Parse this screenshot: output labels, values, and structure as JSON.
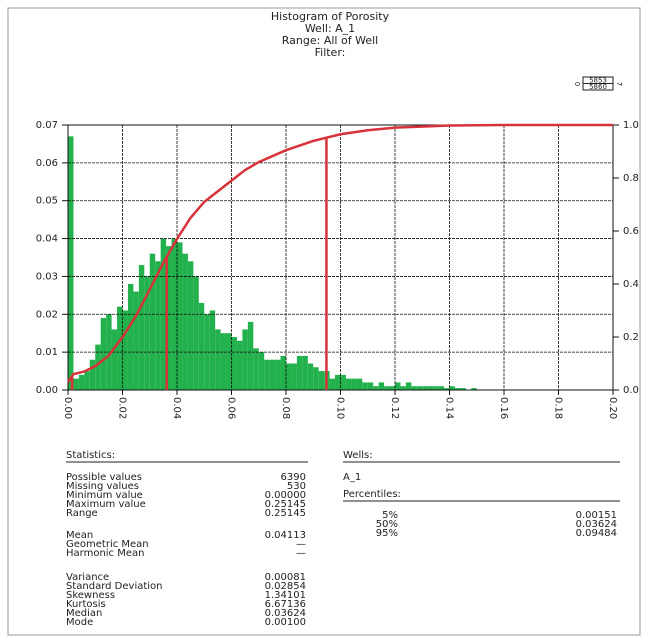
{
  "chart_data": {
    "type": "histogram",
    "title": "Histogram of Porosity",
    "subtitles": [
      "Well:  A_1",
      "Range: All of Well",
      "Filter:"
    ],
    "bins": [
      0,
      0.002,
      0.004,
      0.006,
      0.008,
      0.01,
      0.012,
      0.014,
      0.016,
      0.018,
      0.02,
      0.022,
      0.024,
      0.026,
      0.028,
      0.03,
      0.032,
      0.034,
      0.036,
      0.038,
      0.04,
      0.042,
      0.044,
      0.046,
      0.048,
      0.05,
      0.052,
      0.054,
      0.056,
      0.058,
      0.06,
      0.062,
      0.064,
      0.066,
      0.068,
      0.07,
      0.072,
      0.074,
      0.076,
      0.078,
      0.08,
      0.082,
      0.084,
      0.086,
      0.088,
      0.09,
      0.092,
      0.094,
      0.096,
      0.098,
      0.1,
      0.102,
      0.104,
      0.106,
      0.108,
      0.11,
      0.112,
      0.114,
      0.116,
      0.118,
      0.12,
      0.122,
      0.124,
      0.126,
      0.128,
      0.13,
      0.132,
      0.134,
      0.136,
      0.138,
      0.14,
      0.142,
      0.144,
      0.146,
      0.148,
      0.15
    ],
    "counts": [
      0.067,
      0.003,
      0.004,
      0.005,
      0.008,
      0.012,
      0.019,
      0.02,
      0.016,
      0.022,
      0.021,
      0.028,
      0.026,
      0.033,
      0.03,
      0.036,
      0.034,
      0.04,
      0.038,
      0.04,
      0.039,
      0.036,
      0.034,
      0.03,
      0.023,
      0.02,
      0.021,
      0.016,
      0.015,
      0.015,
      0.014,
      0.013,
      0.016,
      0.018,
      0.011,
      0.01,
      0.008,
      0.008,
      0.008,
      0.009,
      0.007,
      0.007,
      0.009,
      0.009,
      0.007,
      0.006,
      0.005,
      0.005,
      0.003,
      0.004,
      0.004,
      0.003,
      0.003,
      0.003,
      0.002,
      0.002,
      0.001,
      0.002,
      0.001,
      0.001,
      0.002,
      0.001,
      0.002,
      0.001,
      0.001,
      0.001,
      0.001,
      0.001,
      0.001,
      0.0005,
      0.001,
      0.0005,
      0.0005,
      0,
      0.0005
    ],
    "color": "#22b14c",
    "xlim": [
      0,
      0.2
    ],
    "xticks": [
      {
        "value": 0,
        "label": "0.00"
      },
      0.02,
      0.04,
      0.06,
      0.08,
      {
        "value": 0.1,
        "label": "0.10"
      },
      0.12,
      0.14,
      0.16,
      0.18,
      {
        "value": 0.2,
        "label": "0.20"
      }
    ],
    "ylim": [
      0,
      0.07
    ],
    "yticks": [
      {
        "value": 0,
        "label": "0.00"
      },
      0.01,
      0.02,
      0.03,
      0.04,
      0.05,
      0.06,
      0.07
    ],
    "y2lim": [
      0,
      1
    ],
    "y2ticks": [
      {
        "value": 0,
        "label": "0.0"
      },
      0.2,
      0.4,
      0.6,
      0.8,
      {
        "value": 1,
        "label": "1.0"
      }
    ],
    "grid": true,
    "series": [
      {
        "type": "line",
        "axis": "y2",
        "color": "#d8323a",
        "x": [
          0,
          0.002,
          0.006,
          0.01,
          0.015,
          0.02,
          0.025,
          0.03,
          0.035,
          0.04,
          0.045,
          0.05,
          0.055,
          0.06,
          0.065,
          0.07,
          0.08,
          0.09,
          0.1,
          0.11,
          0.12,
          0.14,
          0.16,
          0.2
        ],
        "values": [
          0.03,
          0.06,
          0.07,
          0.09,
          0.13,
          0.2,
          0.28,
          0.38,
          0.48,
          0.57,
          0.65,
          0.71,
          0.75,
          0.79,
          0.83,
          0.86,
          0.905,
          0.94,
          0.965,
          0.98,
          0.99,
          0.998,
          1,
          1
        ]
      }
    ]
  },
  "scale_box": {
    "left": "0",
    "top": "5853",
    "bottom": "5860",
    "right": "7"
  },
  "statistics": {
    "header": "Statistics:",
    "groups": [
      [
        [
          "Possible values",
          "6390"
        ],
        [
          "Missing values",
          "530"
        ],
        [
          "Minimum value",
          "0.00000"
        ],
        [
          "Maximum value",
          "0.25145"
        ],
        [
          "Range",
          "0.25145"
        ]
      ],
      [
        [
          "Mean",
          "0.04113"
        ],
        [
          "Geometric Mean",
          "—"
        ],
        [
          "Harmonic Mean",
          "—"
        ]
      ],
      [
        [
          "Variance",
          "0.00081"
        ],
        [
          "Standard Deviation",
          "0.02854"
        ],
        [
          "Skewness",
          "1.34101"
        ],
        [
          "Kurtosis",
          "6.67136"
        ],
        [
          "Median",
          "0.03624"
        ],
        [
          "Mode",
          "0.00100"
        ]
      ]
    ]
  },
  "wells": {
    "header": "Wells:",
    "names": [
      "A_1"
    ],
    "percentiles": {
      "header": "Percentiles:",
      "rows": [
        {
          "label": "5%",
          "value": 0.00151
        },
        {
          "label": "50%",
          "value": 0.03624
        },
        {
          "label": "95%",
          "value": 0.09484
        }
      ]
    }
  }
}
